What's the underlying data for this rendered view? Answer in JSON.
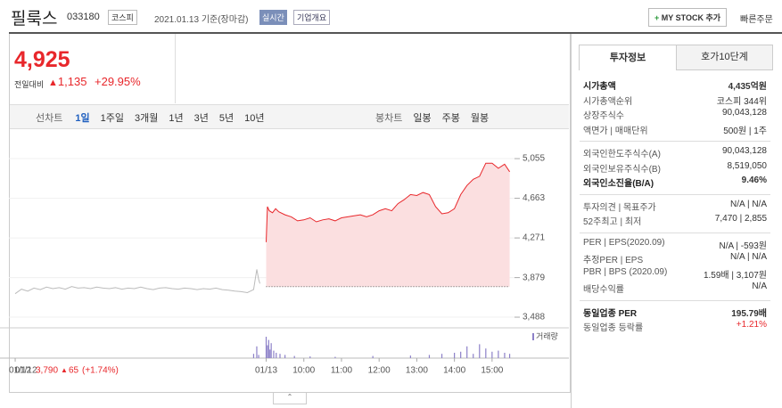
{
  "header": {
    "name": "필룩스",
    "code": "033180",
    "market": "코스피",
    "date": "2021.01.13 기준(장마감)",
    "badge": "실시간",
    "dropdown": "기업개요",
    "mystock": "MY STOCK 추가",
    "quick_order": "빠른주문"
  },
  "price": {
    "current": "4,925",
    "change_label": "전일대비",
    "change": "1,135",
    "rate": "+29.95%"
  },
  "tabs": {
    "line_label": "선차트",
    "periods": [
      "1일",
      "1주일",
      "3개월",
      "1년",
      "3년",
      "5년",
      "10년"
    ],
    "active": 0,
    "candle_label": "봉차트",
    "candles": [
      "일봉",
      "주봉",
      "월봉"
    ]
  },
  "chart_data": {
    "type": "line",
    "ylim": [
      3409,
      5170
    ],
    "yticks": [
      {
        "value": 5055,
        "label": "5,055"
      },
      {
        "value": 4663,
        "label": "4,663"
      },
      {
        "value": 4271,
        "label": "4,271"
      },
      {
        "value": 3879,
        "label": "3,879"
      },
      {
        "value": 3488,
        "label": "3,488"
      }
    ],
    "xlim": [
      -410,
      400
    ],
    "xticks": [
      {
        "value": -400,
        "label": "01/12"
      },
      {
        "value": 0,
        "label": "01/13"
      },
      {
        "value": 60,
        "label": "10:00"
      },
      {
        "value": 120,
        "label": "11:00"
      },
      {
        "value": 180,
        "label": "12:00"
      },
      {
        "value": 240,
        "label": "13:00"
      },
      {
        "value": 300,
        "label": "14:00"
      },
      {
        "value": 360,
        "label": "15:00"
      }
    ],
    "prev_close": 3790,
    "series": [
      {
        "color": "#bbbbbb",
        "x": [
          -400,
          -390,
          -380,
          -370,
          -360,
          -350,
          -340,
          -330,
          -320,
          -310,
          -300,
          -290,
          -280,
          -270,
          -260,
          -250,
          -240,
          -230,
          -220,
          -210,
          -200,
          -190,
          -180,
          -170,
          -160,
          -150,
          -140,
          -130,
          -120,
          -110,
          -100,
          -90,
          -80,
          -70,
          -60,
          -50,
          -40,
          -30,
          -20,
          -15,
          -12,
          -10
        ],
        "values": [
          3720,
          3765,
          3745,
          3775,
          3760,
          3785,
          3770,
          3780,
          3765,
          3790,
          3775,
          3780,
          3770,
          3785,
          3775,
          3770,
          3780,
          3765,
          3775,
          3770,
          3785,
          3770,
          3760,
          3775,
          3780,
          3770,
          3765,
          3775,
          3770,
          3760,
          3770,
          3765,
          3775,
          3760,
          3755,
          3745,
          3740,
          3730,
          3760,
          3960,
          3860,
          3820
        ]
      },
      {
        "color": "#e8272b",
        "fill": "#fbdfe0",
        "x": [
          0,
          2,
          5,
          10,
          15,
          20,
          30,
          40,
          50,
          60,
          70,
          80,
          90,
          100,
          110,
          120,
          130,
          140,
          150,
          160,
          170,
          180,
          190,
          200,
          210,
          220,
          230,
          240,
          250,
          260,
          270,
          280,
          290,
          300,
          310,
          320,
          330,
          340,
          350,
          360,
          370,
          380,
          388
        ],
        "values": [
          4230,
          4580,
          4540,
          4520,
          4560,
          4530,
          4500,
          4480,
          4440,
          4450,
          4470,
          4430,
          4450,
          4460,
          4440,
          4470,
          4480,
          4490,
          4500,
          4480,
          4500,
          4540,
          4560,
          4540,
          4610,
          4650,
          4700,
          4690,
          4720,
          4700,
          4580,
          4510,
          4520,
          4560,
          4700,
          4790,
          4850,
          4880,
          5010,
          5010,
          4960,
          5000,
          4925
        ]
      }
    ],
    "volume": {
      "label": "거래량",
      "color": "#8c80c8",
      "x": [
        -20,
        -15,
        -12,
        0,
        2,
        4,
        6,
        8,
        12,
        16,
        22,
        30,
        45,
        70,
        110,
        170,
        230,
        260,
        280,
        300,
        310,
        320,
        330,
        340,
        350,
        360,
        370,
        380,
        388
      ],
      "values": [
        20,
        55,
        15,
        100,
        60,
        85,
        40,
        70,
        35,
        25,
        20,
        15,
        10,
        8,
        6,
        10,
        12,
        15,
        20,
        25,
        30,
        55,
        20,
        65,
        45,
        30,
        35,
        25,
        20
      ]
    },
    "footer": {
      "date": "01/12",
      "close": "3,790",
      "change": "65",
      "rate": "(+1.74%)"
    }
  },
  "info": {
    "tabs": [
      "투자정보",
      "호가10단계"
    ],
    "sections": [
      [
        {
          "label": "시가총액",
          "value": "4,435억원",
          "bold": true
        },
        {
          "label": "시가총액순위",
          "value": "코스피 344위"
        },
        {
          "label": "상장주식수",
          "value": "90,043,128"
        },
        {
          "label": "액면가 | 매매단위",
          "value": "500원 | 1주"
        }
      ],
      [
        {
          "label": "외국인한도주식수(A)",
          "value": "90,043,128"
        },
        {
          "label": "외국인보유주식수(B)",
          "value": "8,519,050"
        },
        {
          "label": "외국인소진율(B/A)",
          "value": "9.46%",
          "bold": true
        }
      ],
      [
        {
          "label": "투자의견 | 목표주가",
          "value": "N/A | N/A"
        },
        {
          "label": "52주최고 | 최저",
          "value": "7,470 | 2,855"
        }
      ],
      [
        {
          "label": "PER | EPS(2020.09)",
          "value": "N/A | -593원"
        },
        {
          "label": "추정PER | EPS",
          "value": "N/A | N/A"
        },
        {
          "label": "PBR | BPS (2020.09)",
          "value": "1.59배 | 3,107원"
        },
        {
          "label": "배당수익률",
          "value": "N/A"
        }
      ],
      [
        {
          "label": "동일업종 PER",
          "value": "195.79배",
          "bold": true
        },
        {
          "label": "동일업종 등락률",
          "value": "+1.21%",
          "red": true
        }
      ]
    ]
  }
}
